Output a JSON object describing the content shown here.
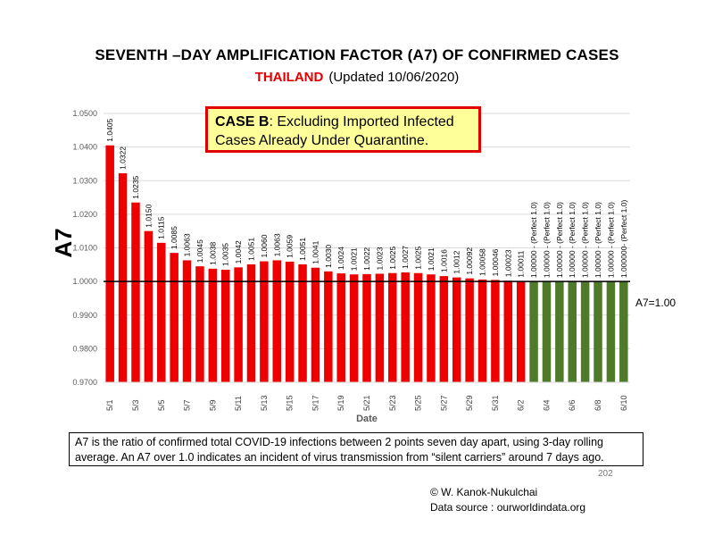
{
  "header": {
    "title": "SEVENTH –DAY AMPLIFICATION FACTOR (A7) OF CONFIRMED CASES",
    "country": "THAILAND",
    "updated": "(Updated 10/06/2020)"
  },
  "case_box": {
    "bold": "CASE B",
    "text": ": Excluding Imported Infected Cases Already Under Quarantine."
  },
  "chart_data": {
    "type": "bar",
    "title": "SEVENTH –DAY AMPLIFICATION FACTOR (A7) OF CONFIRMED CASES",
    "xlabel": "Date",
    "ylabel": "A7",
    "ylim": [
      0.97,
      1.05
    ],
    "yticks": [
      "0.9700",
      "0.9800",
      "0.9900",
      "1.0000",
      "1.0100",
      "1.0200",
      "1.0300",
      "1.0400",
      "1.0500"
    ],
    "grid": true,
    "reference_line": {
      "value": 1.0,
      "label": "A7=1.00"
    },
    "colors": {
      "above": "#ee0000",
      "perfect": "#4e7a2a"
    },
    "categories": [
      "5/1",
      "5/2",
      "5/3",
      "5/4",
      "5/5",
      "5/6",
      "5/7",
      "5/8",
      "5/9",
      "5/10",
      "5/11",
      "5/12",
      "5/13",
      "5/14",
      "5/15",
      "5/16",
      "5/17",
      "5/18",
      "5/19",
      "5/20",
      "5/21",
      "5/22",
      "5/23",
      "5/24",
      "5/25",
      "5/26",
      "5/27",
      "5/28",
      "5/29",
      "5/30",
      "5/31",
      "6/1",
      "6/2",
      "6/3",
      "6/4",
      "6/5",
      "6/6",
      "6/7",
      "6/8",
      "6/9",
      "6/10"
    ],
    "tick_labels": [
      "5/1",
      "5/3",
      "5/5",
      "5/7",
      "5/9",
      "5/11",
      "5/13",
      "5/15",
      "5/17",
      "5/19",
      "5/21",
      "5/23",
      "5/25",
      "5/27",
      "5/29",
      "5/31",
      "6/2",
      "6/4",
      "6/6",
      "6/8",
      "6/10"
    ],
    "values": [
      1.0405,
      1.0322,
      1.0235,
      1.015,
      1.0115,
      1.0085,
      1.0063,
      1.0045,
      1.0038,
      1.0035,
      1.0042,
      1.0051,
      1.006,
      1.0063,
      1.0059,
      1.0051,
      1.0041,
      1.003,
      1.0024,
      1.0021,
      1.0022,
      1.0023,
      1.0025,
      1.0027,
      1.0025,
      1.0021,
      1.0016,
      1.0012,
      1.00092,
      1.00058,
      1.00046,
      1.00023,
      1.00011,
      1.0,
      1.0,
      1.0,
      1.0,
      1.0,
      1.0,
      1.0,
      1.0
    ],
    "data_labels": [
      "1.0405",
      "1.0322",
      "1.0235",
      "1.0150",
      "1.0115",
      "1.0085",
      "1.0063",
      "1.0045",
      "1.0038",
      "1.0035",
      "1.0042",
      "1.0051",
      "1.0060",
      "1.0063",
      "1.0059",
      "1.0051",
      "1.0041",
      "1.0030",
      "1.0024",
      "1.0021",
      "1.0022",
      "1.0023",
      "1.0025",
      "1.0027",
      "1.0025",
      "1.0021",
      "1.0016",
      "1.0012",
      "1.00092",
      "1.00058",
      "1.00046",
      "1.00023",
      "1.00011",
      "1.00000 - (Perfect 1.0)",
      "1.00000 - (Perfect 1.0)",
      "1.00000 - (Perfect 1.0)",
      "1.00000 - (Perfect 1.0)",
      "1.00000 - (Perfect 1.0)",
      "1.00000 - (Perfect 1.0)",
      "1.00000 - (Perfect 1.0)",
      "1.000000- (Perfect 1.0)"
    ],
    "perfect_from_index": 33
  },
  "note": "A7 is the ratio of confirmed total COVID-19 infections between 2 points seven day apart, using 3-day rolling average. An A7 over 1.0 indicates an incident of virus transmission from “silent carriers” around 7 days ago.",
  "page_number": "202",
  "credit": {
    "author": "© W. Kanok-Nukulchai",
    "source": "Data source : ourworldindata.org"
  }
}
